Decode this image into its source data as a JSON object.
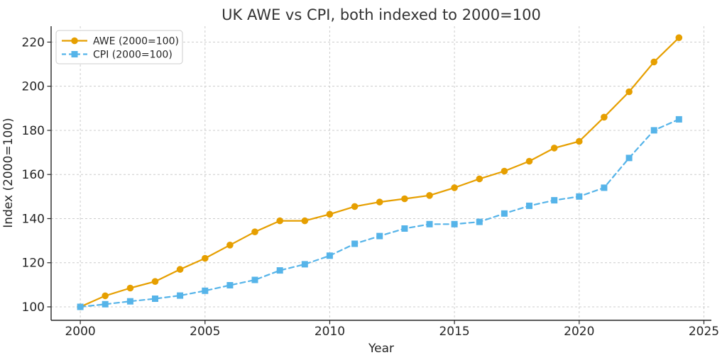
{
  "chart_data": {
    "type": "line",
    "title": "UK AWE vs CPI, both indexed to 2000=100",
    "xlabel": "Year",
    "ylabel": "Index (2000=100)",
    "x": [
      2000,
      2001,
      2002,
      2003,
      2004,
      2005,
      2006,
      2007,
      2008,
      2009,
      2010,
      2011,
      2012,
      2013,
      2014,
      2015,
      2016,
      2017,
      2018,
      2019,
      2020,
      2021,
      2022,
      2023,
      2024
    ],
    "series": [
      {
        "name": "AWE (2000=100)",
        "color": "#E69F00",
        "linestyle": "solid",
        "marker": "circle",
        "values": [
          100,
          105,
          108.5,
          111.5,
          117,
          122,
          128,
          134,
          139,
          139,
          142,
          145.5,
          147.5,
          149,
          150.5,
          154,
          158,
          161.5,
          166,
          172,
          175,
          186,
          197.5,
          211,
          222
        ]
      },
      {
        "name": "CPI (2000=100)",
        "color": "#56B4E9",
        "linestyle": "dashed",
        "marker": "square",
        "values": [
          100,
          101.2,
          102.5,
          103.7,
          105.1,
          107.3,
          109.8,
          112.2,
          116.5,
          119.3,
          123.2,
          128.6,
          132.1,
          135.5,
          137.5,
          137.5,
          138.5,
          142.3,
          145.8,
          148.3,
          150,
          154,
          167.5,
          180,
          185
        ]
      }
    ],
    "x_ticks": [
      "2000",
      "2005",
      "2010",
      "2015",
      "2020",
      "2025"
    ],
    "x_tick_values": [
      2000,
      2005,
      2010,
      2015,
      2020,
      2025
    ],
    "y_ticks": [
      "100",
      "120",
      "140",
      "160",
      "180",
      "200",
      "220"
    ],
    "y_tick_values": [
      100,
      120,
      140,
      160,
      180,
      200,
      220
    ],
    "xlim": [
      1998.83,
      2025.3
    ],
    "ylim": [
      93.9,
      227.2
    ],
    "grid": true,
    "legend_position": "upper left",
    "colors": {
      "grid": "#cccccc",
      "spine": "#262626",
      "tick_text": "#262626",
      "title_text": "#333333",
      "legend_border": "#cccccc",
      "background": "#ffffff"
    }
  }
}
